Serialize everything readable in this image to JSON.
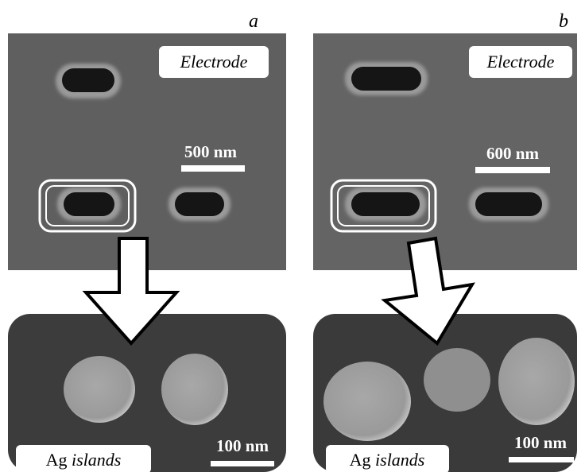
{
  "panels": [
    {
      "label": "a",
      "top": {
        "label": "Electrode",
        "scale_bar": "500 nm"
      },
      "bottom": {
        "label_parts": [
          "Ag",
          "islands"
        ],
        "scale_bar": "100 nm"
      }
    },
    {
      "label": "b",
      "top": {
        "label": "Electrode",
        "scale_bar": "600 nm"
      },
      "bottom": {
        "label_parts": [
          "Ag",
          "islands"
        ],
        "scale_bar": "100 nm"
      }
    }
  ]
}
